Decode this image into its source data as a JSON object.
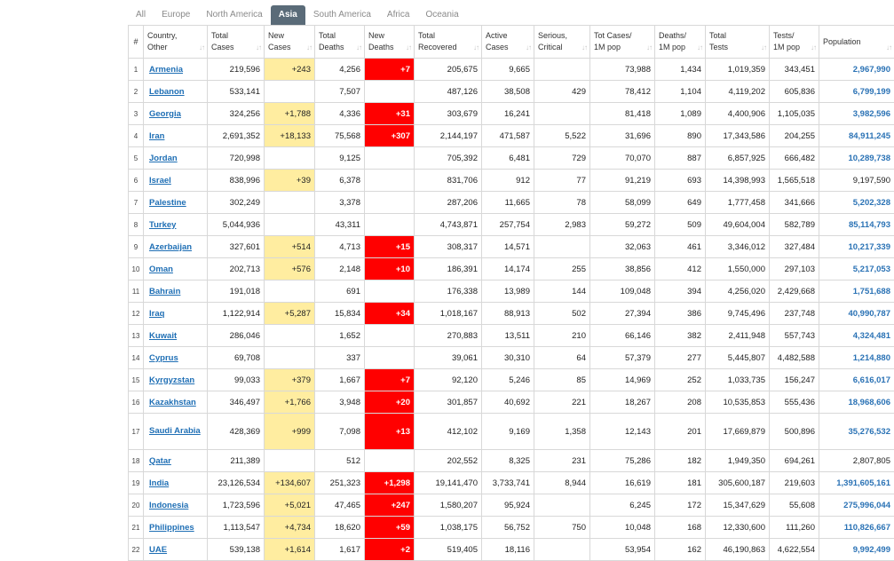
{
  "tabs": [
    "All",
    "Europe",
    "North America",
    "Asia",
    "South America",
    "Africa",
    "Oceania"
  ],
  "active_tab": "Asia",
  "headers": [
    {
      "lines": [
        "#"
      ]
    },
    {
      "lines": [
        "Country,",
        "Other"
      ]
    },
    {
      "lines": [
        "Total",
        "Cases"
      ]
    },
    {
      "lines": [
        "New",
        "Cases"
      ]
    },
    {
      "lines": [
        "Total",
        "Deaths"
      ]
    },
    {
      "lines": [
        "New",
        "Deaths"
      ]
    },
    {
      "lines": [
        "Total",
        "Recovered"
      ]
    },
    {
      "lines": [
        "Active",
        "Cases"
      ]
    },
    {
      "lines": [
        "Serious,",
        "Critical"
      ]
    },
    {
      "lines": [
        "Tot Cases/",
        "1M pop"
      ]
    },
    {
      "lines": [
        "Deaths/",
        "1M pop"
      ]
    },
    {
      "lines": [
        "Total",
        "Tests"
      ]
    },
    {
      "lines": [
        "Tests/",
        "1M pop"
      ]
    },
    {
      "lines": [
        "Population"
      ]
    }
  ],
  "rows": [
    [
      "1",
      "Armenia",
      "219,596",
      "+243",
      "4,256",
      "+7",
      "205,675",
      "9,665",
      "",
      "73,988",
      "1,434",
      "1,019,359",
      "343,451",
      "2,967,990"
    ],
    [
      "2",
      "Lebanon",
      "533,141",
      "",
      "7,507",
      "",
      "487,126",
      "38,508",
      "429",
      "78,412",
      "1,104",
      "4,119,202",
      "605,836",
      "6,799,199"
    ],
    [
      "3",
      "Georgia",
      "324,256",
      "+1,788",
      "4,336",
      "+31",
      "303,679",
      "16,241",
      "",
      "81,418",
      "1,089",
      "4,400,906",
      "1,105,035",
      "3,982,596"
    ],
    [
      "4",
      "Iran",
      "2,691,352",
      "+18,133",
      "75,568",
      "+307",
      "2,144,197",
      "471,587",
      "5,522",
      "31,696",
      "890",
      "17,343,586",
      "204,255",
      "84,911,245"
    ],
    [
      "5",
      "Jordan",
      "720,998",
      "",
      "9,125",
      "",
      "705,392",
      "6,481",
      "729",
      "70,070",
      "887",
      "6,857,925",
      "666,482",
      "10,289,738"
    ],
    [
      "6",
      "Israel",
      "838,996",
      "+39",
      "6,378",
      "",
      "831,706",
      "912",
      "77",
      "91,219",
      "693",
      "14,398,993",
      "1,565,518",
      "9,197,590"
    ],
    [
      "7",
      "Palestine",
      "302,249",
      "",
      "3,378",
      "",
      "287,206",
      "11,665",
      "78",
      "58,099",
      "649",
      "1,777,458",
      "341,666",
      "5,202,328"
    ],
    [
      "8",
      "Turkey",
      "5,044,936",
      "",
      "43,311",
      "",
      "4,743,871",
      "257,754",
      "2,983",
      "59,272",
      "509",
      "49,604,004",
      "582,789",
      "85,114,793"
    ],
    [
      "9",
      "Azerbaijan",
      "327,601",
      "+514",
      "4,713",
      "+15",
      "308,317",
      "14,571",
      "",
      "32,063",
      "461",
      "3,346,012",
      "327,484",
      "10,217,339"
    ],
    [
      "10",
      "Oman",
      "202,713",
      "+576",
      "2,148",
      "+10",
      "186,391",
      "14,174",
      "255",
      "38,856",
      "412",
      "1,550,000",
      "297,103",
      "5,217,053"
    ],
    [
      "11",
      "Bahrain",
      "191,018",
      "",
      "691",
      "",
      "176,338",
      "13,989",
      "144",
      "109,048",
      "394",
      "4,256,020",
      "2,429,668",
      "1,751,688"
    ],
    [
      "12",
      "Iraq",
      "1,122,914",
      "+5,287",
      "15,834",
      "+34",
      "1,018,167",
      "88,913",
      "502",
      "27,394",
      "386",
      "9,745,496",
      "237,748",
      "40,990,787"
    ],
    [
      "13",
      "Kuwait",
      "286,046",
      "",
      "1,652",
      "",
      "270,883",
      "13,511",
      "210",
      "66,146",
      "382",
      "2,411,948",
      "557,743",
      "4,324,481"
    ],
    [
      "14",
      "Cyprus",
      "69,708",
      "",
      "337",
      "",
      "39,061",
      "30,310",
      "64",
      "57,379",
      "277",
      "5,445,807",
      "4,482,588",
      "1,214,880"
    ],
    [
      "15",
      "Kyrgyzstan",
      "99,033",
      "+379",
      "1,667",
      "+7",
      "92,120",
      "5,246",
      "85",
      "14,969",
      "252",
      "1,033,735",
      "156,247",
      "6,616,017"
    ],
    [
      "16",
      "Kazakhstan",
      "346,497",
      "+1,766",
      "3,948",
      "+20",
      "301,857",
      "40,692",
      "221",
      "18,267",
      "208",
      "10,535,853",
      "555,436",
      "18,968,606"
    ],
    [
      "17",
      "Saudi Arabia",
      "428,369",
      "+999",
      "7,098",
      "+13",
      "412,102",
      "9,169",
      "1,358",
      "12,143",
      "201",
      "17,669,879",
      "500,896",
      "35,276,532"
    ],
    [
      "18",
      "Qatar",
      "211,389",
      "",
      "512",
      "",
      "202,552",
      "8,325",
      "231",
      "75,286",
      "182",
      "1,949,350",
      "694,261",
      "2,807,805"
    ],
    [
      "19",
      "India",
      "23,126,534",
      "+134,607",
      "251,323",
      "+1,298",
      "19,141,470",
      "3,733,741",
      "8,944",
      "16,619",
      "181",
      "305,600,187",
      "219,603",
      "1,391,605,161"
    ],
    [
      "20",
      "Indonesia",
      "1,723,596",
      "+5,021",
      "47,465",
      "+247",
      "1,580,207",
      "95,924",
      "",
      "6,245",
      "172",
      "15,347,629",
      "55,608",
      "275,996,044"
    ],
    [
      "21",
      "Philippines",
      "1,113,547",
      "+4,734",
      "18,620",
      "+59",
      "1,038,175",
      "56,752",
      "750",
      "10,048",
      "168",
      "12,330,600",
      "111,260",
      "110,826,667"
    ],
    [
      "22",
      "UAE",
      "539,138",
      "+1,614",
      "1,617",
      "+2",
      "519,405",
      "18,116",
      "",
      "53,954",
      "162",
      "46,190,863",
      "4,622,554",
      "9,992,499"
    ]
  ],
  "plain_population": [
    "Israel",
    "Qatar"
  ],
  "tall_rows": [
    "Saudi Arabia"
  ],
  "sort_icon": "sort-arrows-icon",
  "colors": {
    "new_cases_bg": "#ffeda0",
    "new_deaths_bg": "#ff0000",
    "link": "#1f6fb5",
    "active_tab_bg": "#5a6b78"
  }
}
